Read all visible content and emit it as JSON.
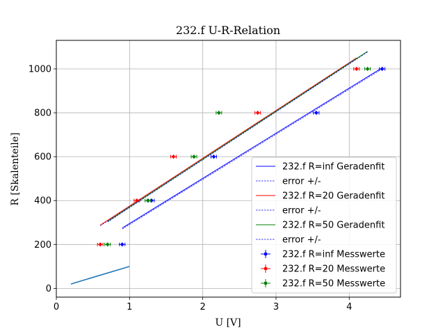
{
  "chart_data": {
    "type": "scatter",
    "title": "232.f U-R-Relation",
    "xlabel": "U [V]",
    "ylabel": "R [Skalenteile]",
    "xlim": [
      0.0,
      4.7
    ],
    "ylim": [
      -40,
      1130
    ],
    "xticks": [
      0,
      1,
      2,
      3,
      4
    ],
    "yticks": [
      0,
      200,
      400,
      600,
      800,
      1000
    ],
    "grid": true,
    "legend_position": "lower right",
    "series": [
      {
        "name": "232.f R=inf Messwerte",
        "kind": "errorbar",
        "color": "#0000ff",
        "points": [
          {
            "x": 0.9,
            "y": 200
          },
          {
            "x": 1.3,
            "y": 400
          },
          {
            "x": 2.15,
            "y": 600
          },
          {
            "x": 3.55,
            "y": 800
          },
          {
            "x": 4.45,
            "y": 1000
          }
        ]
      },
      {
        "name": "232.f R=20 Messwerte",
        "kind": "errorbar",
        "color": "#ff0000",
        "points": [
          {
            "x": 0.6,
            "y": 200
          },
          {
            "x": 1.1,
            "y": 400
          },
          {
            "x": 1.6,
            "y": 600
          },
          {
            "x": 2.75,
            "y": 800
          },
          {
            "x": 4.1,
            "y": 1000
          }
        ]
      },
      {
        "name": "232.f R=50 Messwerte",
        "kind": "errorbar",
        "color": "#008000",
        "points": [
          {
            "x": 0.7,
            "y": 200
          },
          {
            "x": 1.25,
            "y": 400
          },
          {
            "x": 1.88,
            "y": 600
          },
          {
            "x": 2.22,
            "y": 800
          },
          {
            "x": 4.25,
            "y": 1000
          }
        ]
      },
      {
        "name": "232.f R=inf Geradenfit",
        "kind": "line",
        "color": "#0000ff",
        "dashed": false,
        "points": [
          {
            "x": 0.9,
            "y": 275
          },
          {
            "x": 4.45,
            "y": 1005
          }
        ]
      },
      {
        "name": "error +/-",
        "kind": "line",
        "color": "#0000ff",
        "dashed": true,
        "points": [
          {
            "x": 0.9,
            "y": 270
          },
          {
            "x": 4.45,
            "y": 1000
          }
        ]
      },
      {
        "name": "232.f R=20 Geradenfit",
        "kind": "line",
        "color": "#ff0000",
        "dashed": false,
        "points": [
          {
            "x": 0.6,
            "y": 288
          },
          {
            "x": 4.1,
            "y": 1050
          }
        ]
      },
      {
        "name": "error +/-",
        "kind": "line",
        "color": "#0000ff",
        "dashed": true,
        "points": [
          {
            "x": 0.6,
            "y": 285
          },
          {
            "x": 4.1,
            "y": 1045
          }
        ]
      },
      {
        "name": "232.f R=50 Geradenfit",
        "kind": "line",
        "color": "#008000",
        "dashed": false,
        "points": [
          {
            "x": 0.7,
            "y": 305
          },
          {
            "x": 4.25,
            "y": 1080
          }
        ]
      },
      {
        "name": "error +/-",
        "kind": "line",
        "color": "#0000ff",
        "dashed": true,
        "points": [
          {
            "x": 0.7,
            "y": 302
          },
          {
            "x": 4.25,
            "y": 1077
          }
        ]
      },
      {
        "kind": "line",
        "color": "#1f77b4",
        "dashed": false,
        "points": [
          {
            "x": 0.2,
            "y": 20
          },
          {
            "x": 1.0,
            "y": 100
          }
        ]
      }
    ],
    "legend": [
      "232.f R=inf Geradenfit",
      "error +/-",
      "232.f R=20 Geradenfit",
      "error +/-",
      "232.f R=50 Geradenfit",
      "error +/-",
      "232.f R=inf Messwerte",
      "232.f R=20 Messwerte",
      "232.f R=50 Messwerte"
    ]
  }
}
